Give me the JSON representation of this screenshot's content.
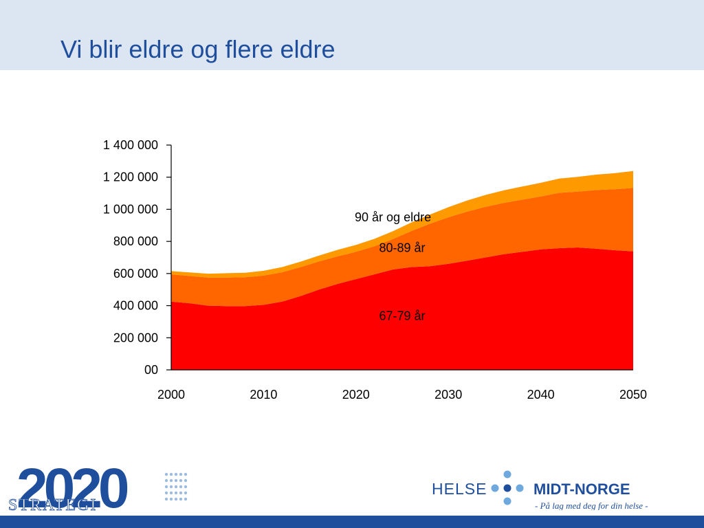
{
  "slide": {
    "title": "Vi blir eldre og flere eldre"
  },
  "chart_data": {
    "type": "area",
    "stacked": true,
    "x": [
      2000,
      2002,
      2004,
      2006,
      2008,
      2010,
      2012,
      2014,
      2016,
      2018,
      2020,
      2022,
      2024,
      2026,
      2028,
      2030,
      2032,
      2034,
      2036,
      2038,
      2040,
      2042,
      2044,
      2046,
      2048,
      2050
    ],
    "series": [
      {
        "name": "67-79 år",
        "color": "#ff0000",
        "values": [
          425000,
          415000,
          400000,
          397000,
          397000,
          405000,
          425000,
          460000,
          500000,
          535000,
          565000,
          595000,
          625000,
          640000,
          645000,
          660000,
          680000,
          700000,
          720000,
          735000,
          750000,
          758000,
          762000,
          755000,
          745000,
          738000
        ]
      },
      {
        "name": "80-89 år",
        "color": "#ff6600",
        "values": [
          170000,
          170000,
          175000,
          178000,
          180000,
          182000,
          183000,
          180000,
          175000,
          172000,
          170000,
          175000,
          190000,
          225000,
          265000,
          290000,
          305000,
          315000,
          320000,
          325000,
          330000,
          345000,
          348000,
          365000,
          380000,
          395000
        ]
      },
      {
        "name": "90 år og eldre",
        "color": "#ff9900",
        "values": [
          20000,
          22000,
          24000,
          27000,
          28000,
          30000,
          32000,
          34000,
          37000,
          40000,
          43000,
          46000,
          49000,
          53000,
          57000,
          63000,
          69000,
          74000,
          78000,
          82000,
          85000,
          88000,
          92000,
          96000,
          100000,
          105000
        ]
      }
    ],
    "ylim": [
      0,
      1400000
    ],
    "yticks": [
      0,
      200000,
      400000,
      600000,
      800000,
      1000000,
      1200000,
      1400000
    ],
    "ytick_labels": [
      "00",
      "200 000",
      "400 000",
      "600 000",
      "800 000",
      "1 000 000",
      "1 200 000",
      "1 400 000"
    ],
    "xticks": [
      2000,
      2010,
      2020,
      2030,
      2040,
      2050
    ],
    "xtick_labels": [
      "2000",
      "2010",
      "2020",
      "2030",
      "2040",
      "2050"
    ],
    "annotations": [
      {
        "text": "90 år og eldre",
        "x": 2024,
        "y": 925000
      },
      {
        "text": "80-89 år",
        "x": 2025,
        "y": 735000
      },
      {
        "text": "67-79 år",
        "x": 2025,
        "y": 310000
      }
    ],
    "grid": false,
    "xlabel": "",
    "ylabel": ""
  },
  "logos": {
    "strategy": {
      "year": "2020",
      "word": "STRATEGI",
      "color": "#1f4e9c"
    },
    "helse": {
      "left": "HELSE",
      "right": "MIDT-NORGE",
      "tagline": "- På lag med deg for din helse -",
      "color": "#1f4e9c",
      "dot_color": "#6fa8dc"
    }
  }
}
